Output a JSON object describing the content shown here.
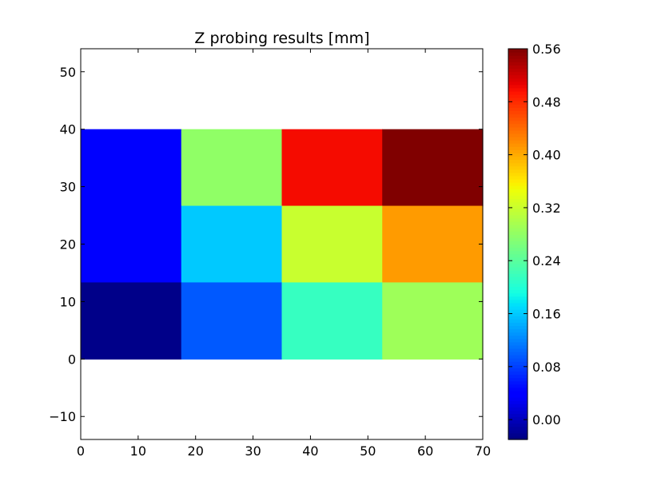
{
  "chart_data": {
    "type": "heatmap",
    "title": "Z probing results [mm]",
    "xlabel": "",
    "ylabel": "",
    "xlim": [
      0,
      70
    ],
    "ylim": [
      -14,
      54
    ],
    "x_ticks": [
      0,
      10,
      20,
      30,
      40,
      50,
      60,
      70
    ],
    "y_ticks": [
      -10,
      0,
      10,
      20,
      30,
      40,
      50
    ],
    "x_edges": [
      0,
      17.5,
      35,
      52.5,
      70
    ],
    "y_edges": [
      0,
      13.333,
      26.667,
      40
    ],
    "grid": false,
    "cells": [
      [
        0.035,
        0.28,
        0.5,
        0.56
      ],
      [
        0.035,
        0.16,
        0.32,
        0.41
      ],
      [
        -0.025,
        0.095,
        0.215,
        0.29
      ]
    ],
    "colorbar": {
      "range": [
        -0.03,
        0.56
      ],
      "ticks": [
        0.0,
        0.08,
        0.16,
        0.24,
        0.32,
        0.4,
        0.48,
        0.56
      ],
      "tick_labels": [
        "0.00",
        "0.08",
        "0.16",
        "0.24",
        "0.32",
        "0.40",
        "0.48",
        "0.56"
      ],
      "colormap": "jet"
    }
  }
}
